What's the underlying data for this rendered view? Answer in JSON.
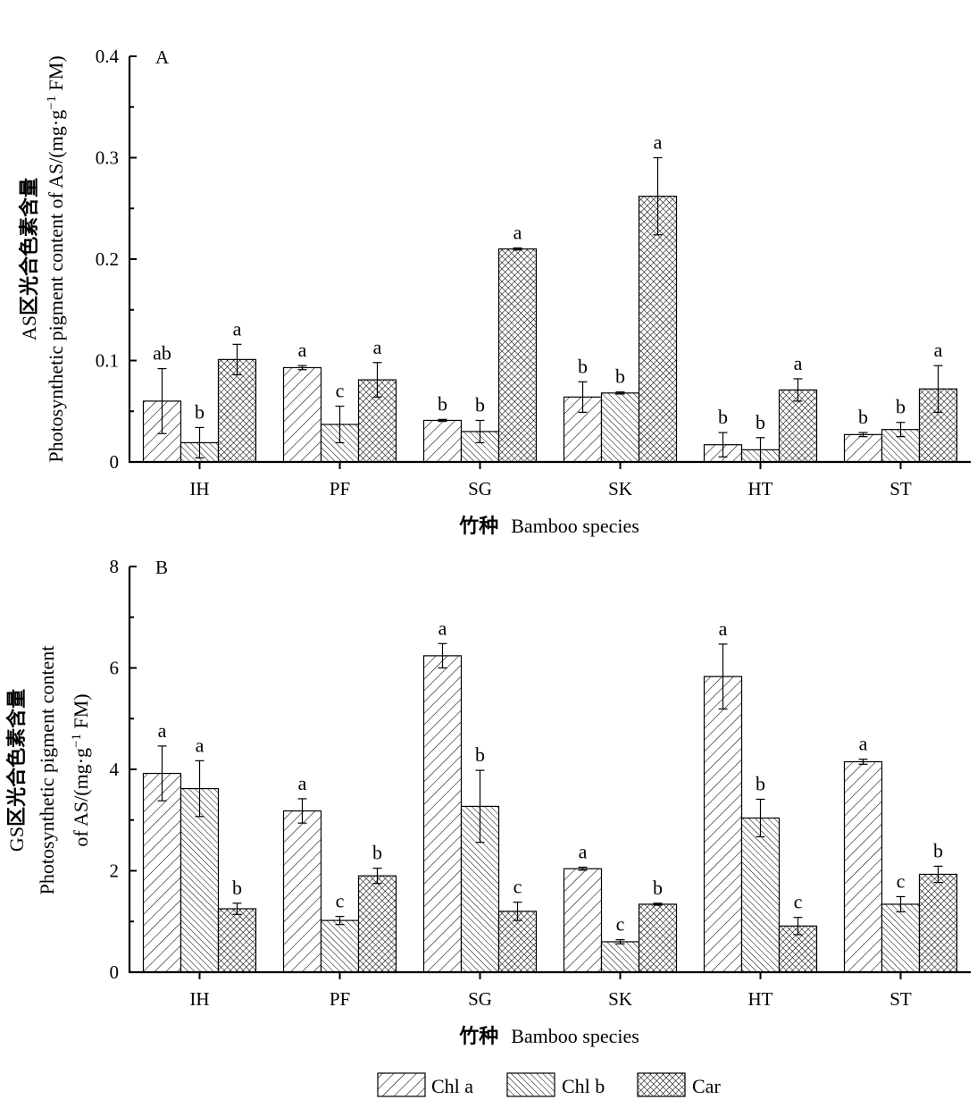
{
  "chart_data": [
    {
      "type": "bar",
      "panel": "A",
      "categories": [
        "IH",
        "PF",
        "SG",
        "SK",
        "HT",
        "ST"
      ],
      "ylim": [
        0,
        0.4
      ],
      "yticks": [
        0,
        0.1,
        0.2,
        0.3,
        0.4
      ],
      "ytick_labels": [
        "0",
        "0.1",
        "0.2",
        "0.3",
        "0.4"
      ],
      "minor_ticks": true,
      "ylabel_cn": "AS区光合色素含量",
      "ylabel_lines": [
        "Photosynthetic pigment content of AS/(mg·g",
        "−1",
        " FM)"
      ],
      "xlabel_cn": "竹种",
      "xlabel": "Bamboo species",
      "series": [
        {
          "name": "Chl a",
          "values": [
            0.06,
            0.093,
            0.041,
            0.064,
            0.017,
            0.027
          ],
          "errors": [
            0.032,
            0.002,
            0.001,
            0.015,
            0.012,
            0.002
          ],
          "letters": [
            "ab",
            "a",
            "b",
            "b",
            "b",
            "b"
          ]
        },
        {
          "name": "Chl b",
          "values": [
            0.019,
            0.037,
            0.03,
            0.068,
            0.012,
            0.032
          ],
          "errors": [
            0.015,
            0.018,
            0.011,
            0.001,
            0.012,
            0.007
          ],
          "letters": [
            "b",
            "c",
            "b",
            "b",
            "b",
            "b"
          ]
        },
        {
          "name": "Car",
          "values": [
            0.101,
            0.081,
            0.21,
            0.262,
            0.071,
            0.072
          ],
          "errors": [
            0.015,
            0.017,
            0.001,
            0.038,
            0.011,
            0.023
          ],
          "letters": [
            "a",
            "a",
            "a",
            "a",
            "a",
            "a"
          ]
        }
      ]
    },
    {
      "type": "bar",
      "panel": "B",
      "categories": [
        "IH",
        "PF",
        "SG",
        "SK",
        "HT",
        "ST"
      ],
      "ylim": [
        0,
        8
      ],
      "yticks": [
        0,
        2,
        4,
        6,
        8
      ],
      "ytick_labels": [
        "0",
        "2",
        "4",
        "6",
        "8"
      ],
      "minor_ticks": true,
      "ylabel_cn": "GS区光合色素含量",
      "ylabel_lines_1": "Photosynthetic pigment content",
      "ylabel_lines_2": [
        "of AS/(mg·g",
        "−1",
        " FM)"
      ],
      "xlabel_cn": "竹种",
      "xlabel": "Bamboo species",
      "series": [
        {
          "name": "Chl a",
          "values": [
            3.92,
            3.18,
            6.24,
            2.04,
            5.83,
            4.15
          ],
          "errors": [
            0.54,
            0.24,
            0.24,
            0.03,
            0.64,
            0.05
          ],
          "letters": [
            "a",
            "a",
            "a",
            "a",
            "a",
            "a"
          ]
        },
        {
          "name": "Chl b",
          "values": [
            3.62,
            1.02,
            3.27,
            0.6,
            3.04,
            1.34
          ],
          "errors": [
            0.55,
            0.08,
            0.71,
            0.04,
            0.37,
            0.15
          ],
          "letters": [
            "a",
            "c",
            "b",
            "c",
            "b",
            "c"
          ]
        },
        {
          "name": "Car",
          "values": [
            1.25,
            1.9,
            1.2,
            1.34,
            0.91,
            1.93
          ],
          "errors": [
            0.11,
            0.15,
            0.18,
            0.02,
            0.17,
            0.16
          ],
          "letters": [
            "b",
            "b",
            "c",
            "b",
            "c",
            "b"
          ]
        }
      ]
    }
  ],
  "legend": {
    "placement": "bottom-center",
    "items": [
      {
        "label": "Chl a",
        "pattern": "forward-diagonal"
      },
      {
        "label": "Chl b",
        "pattern": "backward-diagonal"
      },
      {
        "label": "Car",
        "pattern": "crosshatch"
      }
    ]
  },
  "colors": {
    "ink": "#000000",
    "background": "#ffffff"
  }
}
